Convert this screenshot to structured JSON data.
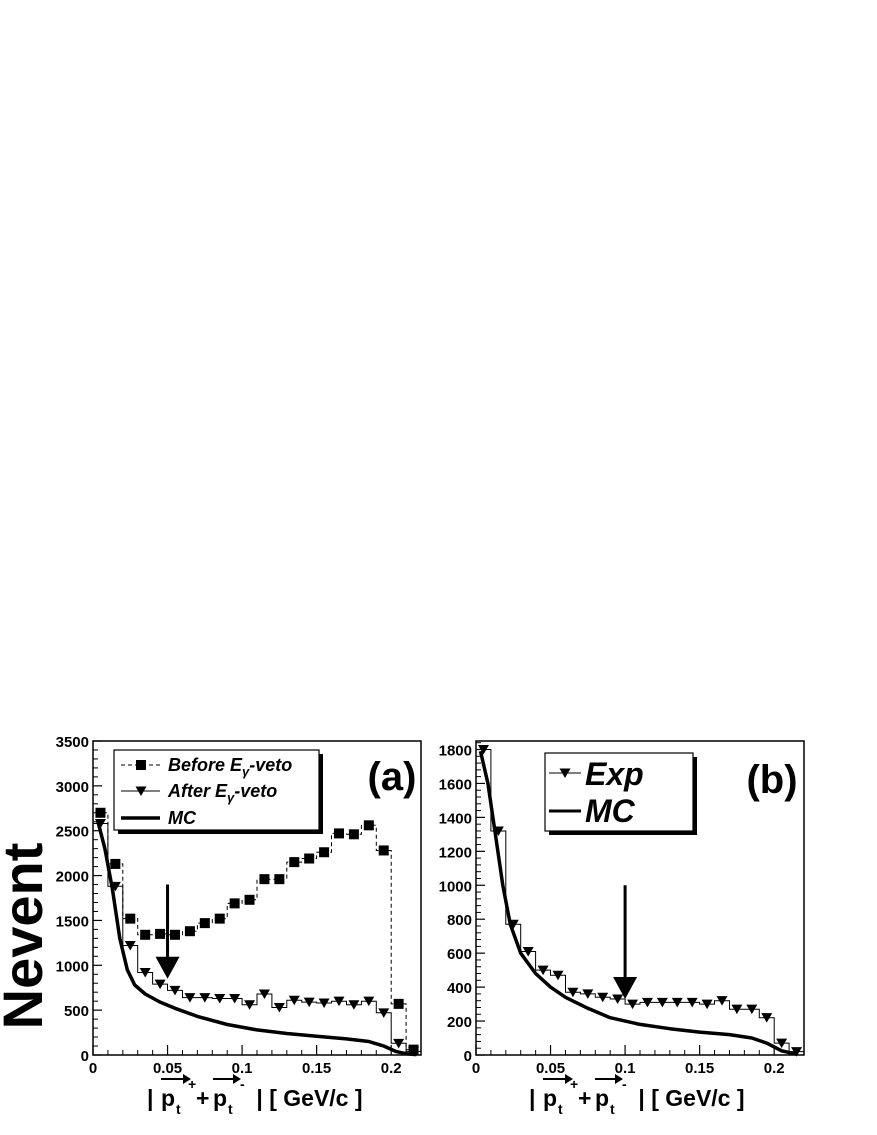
{
  "chart_data": [
    {
      "type": "line",
      "panel_label": "(a)",
      "ylabel": "Nevent",
      "xlabel_parts": {
        "prefix": "| ",
        "p": "p",
        "sub": "t",
        "sup_plus": "+",
        "plus": "+",
        "sup_minus": "-",
        "suffix": " | [ GeV/c ]"
      },
      "xlim": [
        0,
        0.22
      ],
      "ylim": [
        0,
        3500
      ],
      "x_ticks": [
        0,
        0.05,
        0.1,
        0.15,
        0.2
      ],
      "x_tick_labels": [
        "0",
        "0.05",
        "0.1",
        "0.15",
        "0.2"
      ],
      "y_ticks": [
        0,
        500,
        1000,
        1500,
        2000,
        2500,
        3000,
        3500
      ],
      "y_tick_labels": [
        "0",
        "500",
        "1000",
        "1500",
        "2000",
        "2500",
        "3000",
        "3500"
      ],
      "bin_width": 0.01,
      "legend": {
        "entries": [
          {
            "label_main": "Before E",
            "label_sub": "γ",
            "label_tail": "-veto",
            "style": "dashed-square"
          },
          {
            "label_main": "After E",
            "label_sub": "γ",
            "label_tail": "-veto",
            "style": "solid-triangle"
          },
          {
            "label_main": "MC",
            "label_sub": "",
            "label_tail": "",
            "style": "thick-line"
          }
        ]
      },
      "series": [
        {
          "name": "Before Eγ-veto",
          "style": "dashed-square",
          "x": [
            0.005,
            0.015,
            0.025,
            0.035,
            0.045,
            0.055,
            0.065,
            0.075,
            0.085,
            0.095,
            0.105,
            0.115,
            0.125,
            0.135,
            0.145,
            0.155,
            0.165,
            0.175,
            0.185,
            0.195,
            0.205,
            0.215
          ],
          "y": [
            2700,
            2130,
            1520,
            1340,
            1350,
            1340,
            1380,
            1470,
            1520,
            1690,
            1730,
            1960,
            1960,
            2150,
            2190,
            2260,
            2470,
            2460,
            2560,
            2280,
            570,
            60
          ]
        },
        {
          "name": "After Eγ-veto",
          "style": "solid-triangle",
          "x": [
            0.005,
            0.015,
            0.025,
            0.035,
            0.045,
            0.055,
            0.065,
            0.075,
            0.085,
            0.095,
            0.105,
            0.115,
            0.125,
            0.135,
            0.145,
            0.155,
            0.165,
            0.175,
            0.185,
            0.195,
            0.205,
            0.215
          ],
          "y": [
            2580,
            1880,
            1220,
            920,
            790,
            720,
            640,
            640,
            630,
            630,
            560,
            680,
            530,
            610,
            590,
            580,
            600,
            560,
            600,
            470,
            130,
            40
          ]
        },
        {
          "name": "MC",
          "style": "thick-line",
          "x": [
            0.003,
            0.008,
            0.013,
            0.018,
            0.023,
            0.028,
            0.035,
            0.045,
            0.055,
            0.07,
            0.09,
            0.11,
            0.13,
            0.15,
            0.17,
            0.185,
            0.195,
            0.203,
            0.21,
            0.217
          ],
          "y": [
            2620,
            2300,
            1850,
            1300,
            950,
            780,
            680,
            590,
            520,
            430,
            340,
            280,
            240,
            210,
            180,
            150,
            100,
            40,
            15,
            5
          ]
        }
      ],
      "arrow": {
        "x": 0.05,
        "y_top": 1900,
        "y_bottom": 850
      }
    },
    {
      "type": "line",
      "panel_label": "(b)",
      "xlabel_parts": {
        "prefix": "| ",
        "p": "p",
        "sub": "t",
        "sup_plus": "+",
        "plus": "+",
        "sup_minus": "-",
        "suffix": " | [ GeV/c ]"
      },
      "xlim": [
        0,
        0.22
      ],
      "ylim": [
        0,
        1850
      ],
      "x_ticks": [
        0,
        0.05,
        0.1,
        0.15,
        0.2
      ],
      "x_tick_labels": [
        "0",
        "0.05",
        "0.1",
        "0.15",
        "0.2"
      ],
      "y_ticks": [
        0,
        200,
        400,
        600,
        800,
        1000,
        1200,
        1400,
        1600,
        1800
      ],
      "y_tick_labels": [
        "0",
        "200",
        "400",
        "600",
        "800",
        "1000",
        "1200",
        "1400",
        "1600",
        "1800"
      ],
      "bin_width": 0.01,
      "legend": {
        "entries": [
          {
            "label_main": "Exp",
            "label_sub": "",
            "label_tail": "",
            "style": "solid-triangle"
          },
          {
            "label_main": "MC",
            "label_sub": "",
            "label_tail": "",
            "style": "thick-line"
          }
        ]
      },
      "series": [
        {
          "name": "Exp",
          "style": "solid-triangle",
          "x": [
            0.005,
            0.015,
            0.025,
            0.035,
            0.045,
            0.055,
            0.065,
            0.075,
            0.085,
            0.095,
            0.105,
            0.115,
            0.125,
            0.135,
            0.145,
            0.155,
            0.165,
            0.175,
            0.185,
            0.195,
            0.205,
            0.215
          ],
          "y": [
            1800,
            1320,
            770,
            610,
            500,
            470,
            370,
            360,
            340,
            330,
            300,
            310,
            310,
            310,
            310,
            300,
            320,
            270,
            270,
            220,
            70,
            20
          ]
        },
        {
          "name": "MC",
          "style": "thick-line",
          "x": [
            0.003,
            0.008,
            0.013,
            0.018,
            0.023,
            0.03,
            0.04,
            0.05,
            0.06,
            0.075,
            0.09,
            0.11,
            0.13,
            0.15,
            0.17,
            0.185,
            0.195,
            0.205,
            0.215
          ],
          "y": [
            1790,
            1600,
            1300,
            1000,
            770,
            600,
            480,
            400,
            340,
            275,
            220,
            180,
            155,
            135,
            120,
            100,
            70,
            25,
            5
          ]
        }
      ],
      "arrow": {
        "x": 0.1,
        "y_top": 1000,
        "y_bottom": 330
      }
    }
  ]
}
